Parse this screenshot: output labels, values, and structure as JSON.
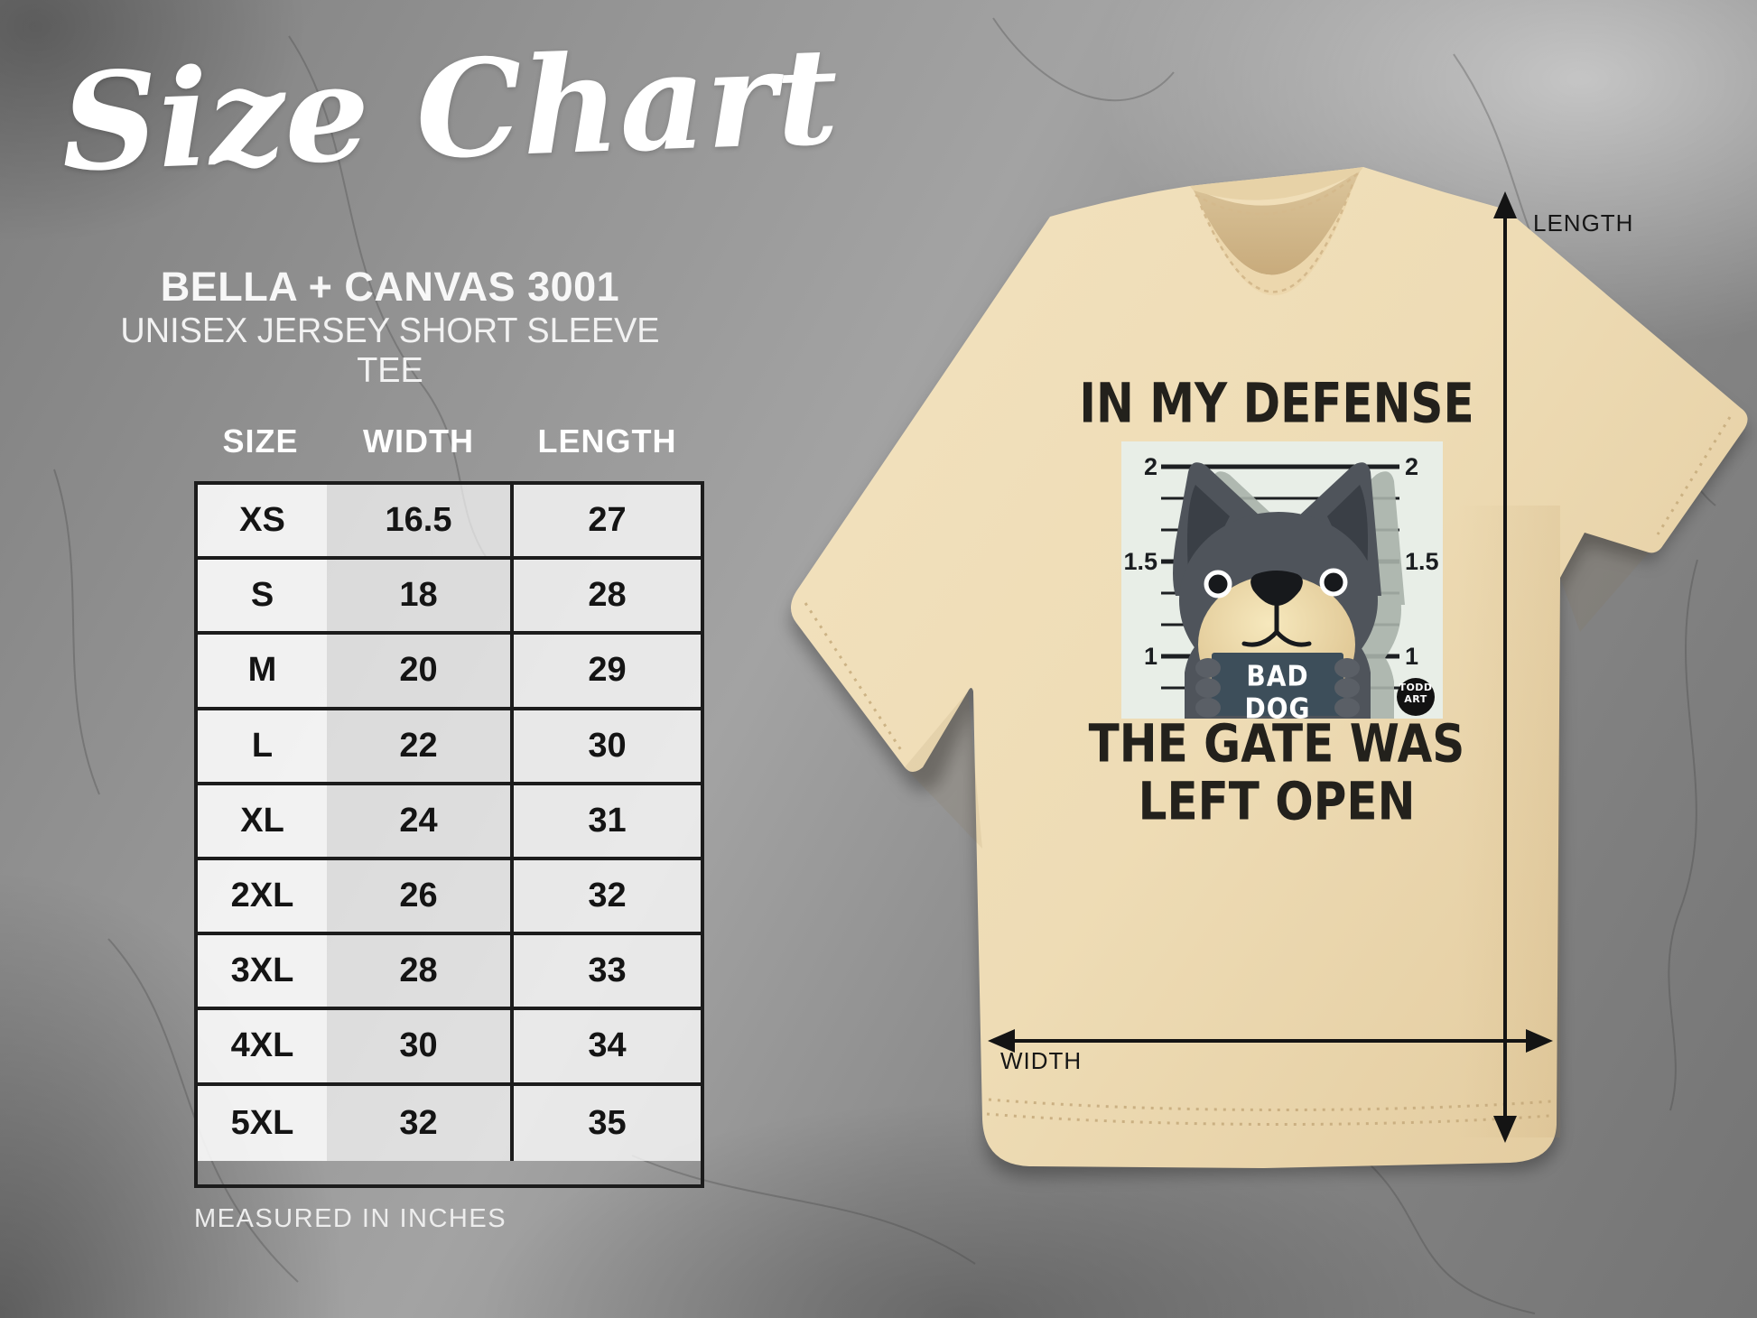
{
  "title": "Size Chart",
  "product": {
    "line1": "BELLA + CANVAS 3001",
    "line2": "UNISEX JERSEY SHORT SLEEVE TEE"
  },
  "chart_data": {
    "type": "table",
    "title": "Size Chart",
    "columns": [
      "SIZE",
      "WIDTH",
      "LENGTH"
    ],
    "rows": [
      [
        "XS",
        "16.5",
        "27"
      ],
      [
        "S",
        "18",
        "28"
      ],
      [
        "M",
        "20",
        "29"
      ],
      [
        "L",
        "22",
        "30"
      ],
      [
        "XL",
        "24",
        "31"
      ],
      [
        "2XL",
        "26",
        "32"
      ],
      [
        "3XL",
        "28",
        "33"
      ],
      [
        "4XL",
        "30",
        "34"
      ],
      [
        "5XL",
        "32",
        "35"
      ]
    ],
    "note": "MEASURED IN INCHES",
    "units": "inches"
  },
  "shirt": {
    "front_text_top": "IN MY DEFENSE",
    "front_text_bottom_line1": "THE GATE WAS",
    "front_text_bottom_line2": "LEFT OPEN",
    "sign_text": "BAD DOG",
    "badge_line1": "TODD",
    "badge_line2": "ART",
    "mugshot_markers": [
      "2",
      "1.5",
      "1"
    ],
    "colors": {
      "shirt": "#eedcb5",
      "panel": "#e8eee7",
      "sign": "#3d4e5a",
      "dog": "#4f545b",
      "muzzle": "#edd9a4",
      "text": "#23211c"
    }
  },
  "measurements": {
    "length_label": "LENGTH",
    "width_label": "WIDTH"
  }
}
